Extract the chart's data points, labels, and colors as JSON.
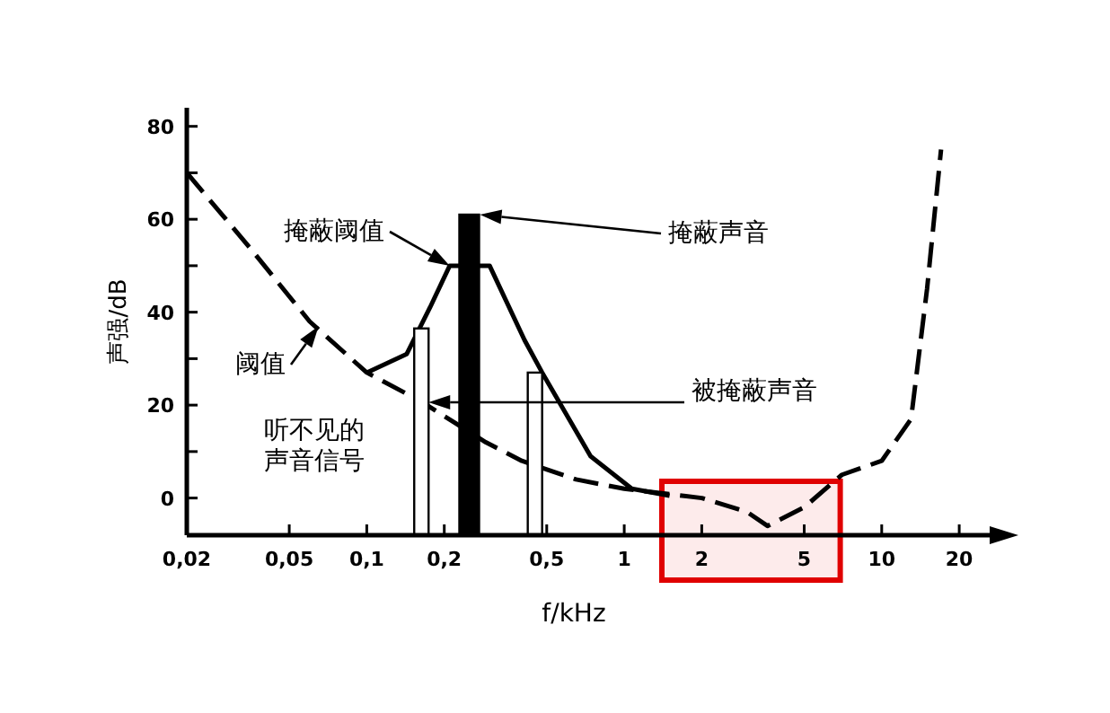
{
  "chart_data": {
    "type": "line",
    "xlabel": "f/kHz",
    "ylabel": "声强/dB",
    "log": "x",
    "xlim": [
      0.02,
      28
    ],
    "ylim": [
      -8,
      84
    ],
    "xticks": [
      {
        "value": 0.02,
        "label": "0,02"
      },
      {
        "value": 0.05,
        "label": "0,05"
      },
      {
        "value": 0.1,
        "label": "0,1"
      },
      {
        "value": 0.2,
        "label": "0,2"
      },
      {
        "value": 0.5,
        "label": "0,5"
      },
      1,
      2,
      5,
      10,
      20
    ],
    "yticks": [
      0,
      {
        "value": 10,
        "label": null
      },
      20,
      {
        "value": 30,
        "label": null
      },
      40,
      {
        "value": 50,
        "label": null
      },
      60,
      {
        "value": 70,
        "label": null
      },
      80
    ],
    "series": [
      {
        "line_style": "dashed",
        "color": "#000000",
        "x": [
          0.02,
          0.035,
          0.06,
          0.1,
          0.16,
          0.29,
          0.4,
          0.65,
          1,
          2,
          3,
          3.6,
          5,
          7,
          10,
          13,
          15,
          17
        ],
        "values": [
          70,
          54,
          38,
          27,
          21,
          12,
          8,
          4,
          2,
          0,
          -3,
          -6,
          -2,
          5,
          8,
          17,
          45,
          75
        ]
      },
      {
        "line_style": "solid",
        "color": "#000000",
        "x": [
          0.1,
          0.143,
          0.176,
          0.21,
          0.3,
          0.41,
          0.48,
          0.74,
          1.07,
          1.5
        ],
        "values": [
          27,
          31,
          41,
          50,
          50,
          34,
          27,
          9,
          2,
          0.5
        ]
      },
      {
        "type": "bar",
        "x": [
          0.163,
          0.25,
          0.45
        ],
        "base": [
          -8,
          -8,
          -8
        ],
        "values": [
          44.5,
          69,
          35
        ],
        "colors": [
          "#ffffff",
          "#000000",
          "#ffffff"
        ]
      }
    ],
    "annotations": [
      {
        "text": "掩蔽阈值",
        "x": 0.21,
        "y": 50
      },
      {
        "text": "阈值",
        "x": 0.065,
        "y": 37
      },
      "掩蔽声音",
      "被掩蔽声音",
      "听不见的声音信号"
    ],
    "bands": [
      {
        "axis": "x",
        "from": 1.4,
        "to": 6.9,
        "color": "#e00000"
      }
    ]
  }
}
